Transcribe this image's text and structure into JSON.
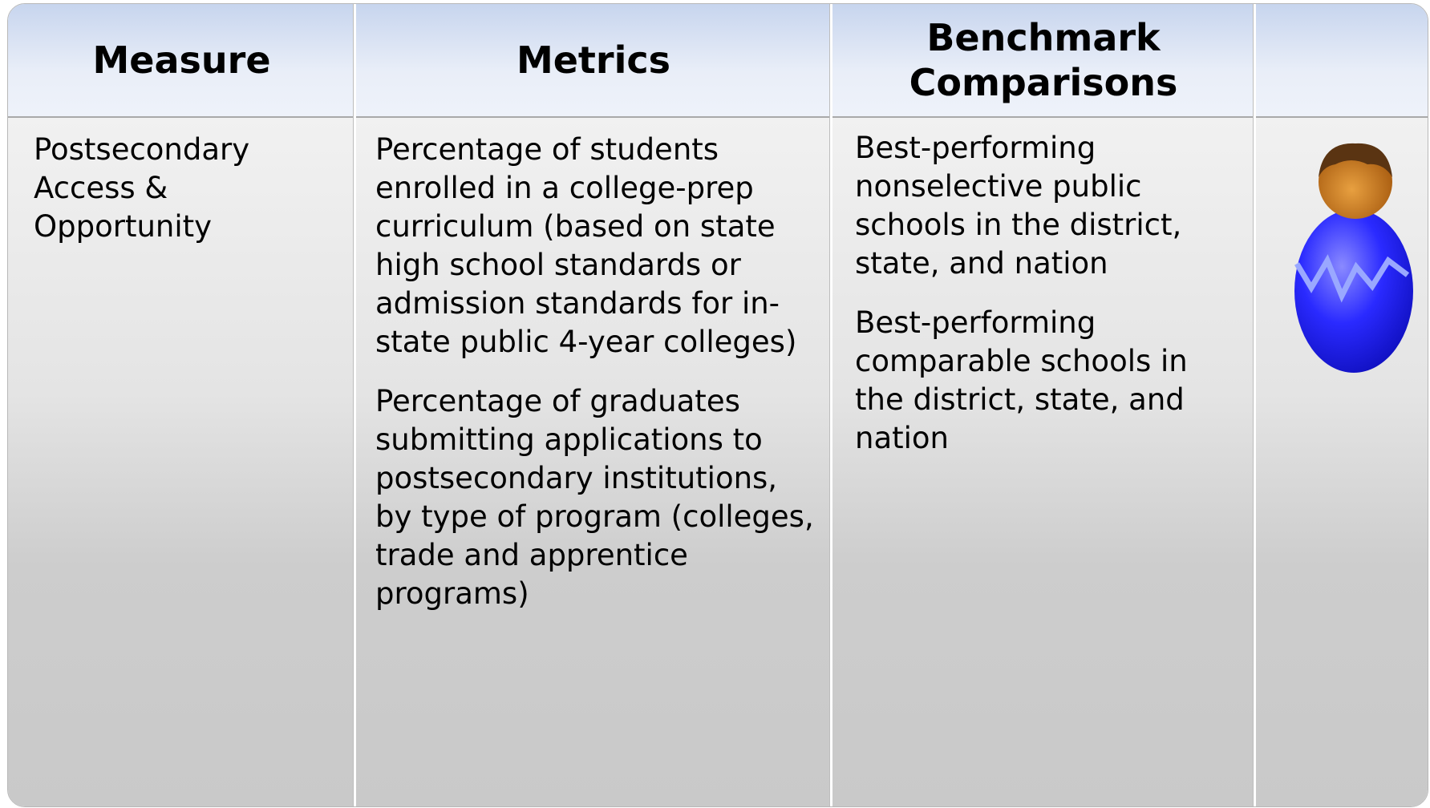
{
  "table": {
    "header": [
      "Measure",
      "Metrics",
      "Benchmark Comparisons"
    ],
    "rows": [
      {
        "measure": "Postsecondary Access & Opportunity",
        "metrics": [
          "Percentage of students enrolled in a college-prep curriculum (based on state high school standards or admission standards for in-state public 4-year colleges)",
          "Percentage of graduates submitting applications to postsecondary institutions, by type of program (colleges, trade and apprentice programs)"
        ],
        "benchmarks": [
          "Best-performing nonselective public schools in the district, state, and nation",
          "Best-performing comparable schools in the district, state, and nation"
        ]
      }
    ]
  }
}
